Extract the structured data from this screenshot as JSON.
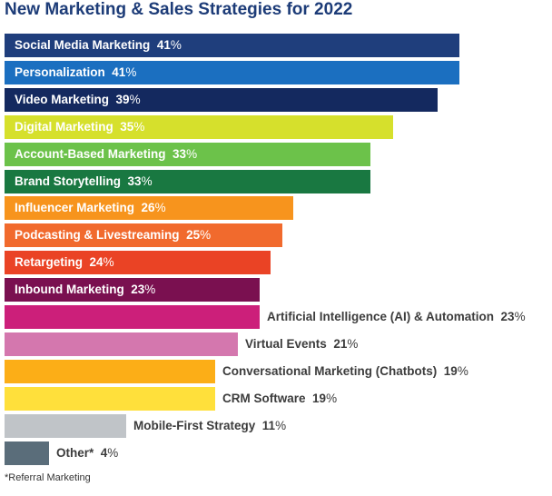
{
  "chart_data": {
    "type": "bar",
    "orientation": "horizontal",
    "title": "New Marketing & Sales Strategies for 2022",
    "footnote": "*Referral Marketing",
    "categories": [
      "Social Media Marketing",
      "Personalization",
      "Video Marketing",
      "Digital Marketing",
      "Account-Based Marketing",
      "Brand Storytelling",
      "Influencer Marketing",
      "Podcasting & Livestreaming",
      "Retargeting",
      "Inbound Marketing",
      "Artificial Intelligence (AI) & Automation",
      "Virtual Events",
      "Conversational Marketing (Chatbots)",
      "CRM Software",
      "Mobile-First Strategy",
      "Other*"
    ],
    "values": [
      41,
      41,
      39,
      35,
      33,
      33,
      26,
      25,
      24,
      23,
      23,
      21,
      19,
      19,
      11,
      4
    ],
    "value_labels": [
      "41%",
      "41%",
      "39%",
      "35%",
      "33%",
      "33%",
      "26%",
      "25%",
      "24%",
      "23%",
      "23%",
      "21%",
      "19%",
      "19%",
      "11%",
      "4%"
    ],
    "colors": [
      "#1f3e7c",
      "#1b6fc0",
      "#14295f",
      "#d6e02c",
      "#6cc24a",
      "#197841",
      "#f7941d",
      "#f16a2d",
      "#ea4325",
      "#7a1050",
      "#cc1f7a",
      "#d477ae",
      "#fcae17",
      "#ffe03b",
      "#c0c4c8",
      "#5a6d7a"
    ],
    "label_position": [
      "inside",
      "inside",
      "inside",
      "inside",
      "inside",
      "inside",
      "inside",
      "inside",
      "inside",
      "inside",
      "outside",
      "outside",
      "outside",
      "outside",
      "outside",
      "outside"
    ],
    "label_color_inside": "#ffffff",
    "label_color_outside": "#3c3c3c",
    "xlim": [
      0,
      42
    ],
    "grid": false
  }
}
